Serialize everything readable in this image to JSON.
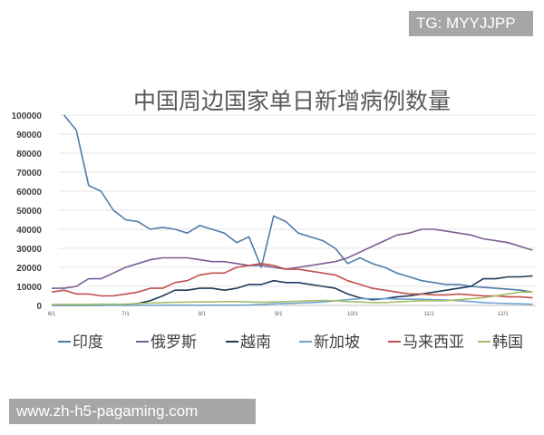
{
  "watermarks": {
    "top_right": "TG: MYYJJPP",
    "bottom_left": "www.zh-h5-pagaming.com"
  },
  "chart_data": {
    "type": "line",
    "title": "中国周边国家单日新增病例数量",
    "xlabel": "",
    "ylabel": "",
    "ylim": [
      0,
      100000
    ],
    "yticks": [
      "0",
      "10000",
      "20000",
      "30000",
      "40000",
      "50000",
      "60000",
      "70000",
      "80000",
      "90000",
      "100000"
    ],
    "xticks": [
      "6/1",
      "7/1",
      "8/1",
      "9/1",
      "10/1",
      "11/1",
      "12/1"
    ],
    "grid": true,
    "legend": "bottom",
    "x": [
      "6/1",
      "6/6",
      "6/11",
      "6/16",
      "6/21",
      "6/26",
      "7/1",
      "7/6",
      "7/11",
      "7/16",
      "7/21",
      "7/26",
      "7/31",
      "8/5",
      "8/10",
      "8/15",
      "8/20",
      "8/25",
      "8/30",
      "9/4",
      "9/9",
      "9/14",
      "9/19",
      "9/24",
      "9/29",
      "10/4",
      "10/9",
      "10/14",
      "10/19",
      "10/24",
      "10/29",
      "11/3",
      "11/8",
      "11/13",
      "11/18",
      "11/23",
      "11/28",
      "12/3",
      "12/8",
      "12/13"
    ],
    "series": [
      {
        "name": "印度",
        "color": "#4e7bab",
        "values": [
          null,
          100000,
          92000,
          63000,
          60000,
          50000,
          45000,
          44000,
          40000,
          41000,
          40000,
          38000,
          42000,
          40000,
          38000,
          33000,
          36000,
          20000,
          47000,
          44000,
          38000,
          36000,
          34000,
          30000,
          22000,
          25000,
          22000,
          20000,
          17000,
          15000,
          13000,
          12000,
          11000,
          11000,
          10000,
          9500,
          9000,
          8500,
          8000,
          7000
        ]
      },
      {
        "name": "俄罗斯",
        "color": "#7a5e95",
        "values": [
          9000,
          9000,
          10000,
          14000,
          14000,
          17000,
          20000,
          22000,
          24000,
          25000,
          25000,
          25000,
          24000,
          23000,
          23000,
          22000,
          21000,
          21000,
          20000,
          19000,
          20000,
          21000,
          22000,
          23000,
          25000,
          28000,
          31000,
          34000,
          37000,
          38000,
          40000,
          40000,
          39000,
          38000,
          37000,
          35000,
          34000,
          33000,
          31000,
          29000
        ]
      },
      {
        "name": "越南",
        "color": "#1f3b5c",
        "values": [
          0,
          0,
          0,
          0,
          0,
          200,
          500,
          1000,
          2500,
          5000,
          8000,
          8000,
          9000,
          9000,
          8000,
          9000,
          11000,
          11000,
          13000,
          12000,
          12000,
          11000,
          10000,
          9000,
          6000,
          4000,
          3000,
          3500,
          4500,
          5000,
          6000,
          7000,
          8000,
          9000,
          10000,
          14000,
          14000,
          15000,
          15000,
          15500
        ]
      },
      {
        "name": "新加坡",
        "color": "#6fa3cf",
        "values": [
          0,
          0,
          0,
          0,
          0,
          0,
          0,
          0,
          0,
          100,
          100,
          100,
          100,
          100,
          100,
          100,
          200,
          500,
          800,
          1000,
          1200,
          1500,
          1800,
          2500,
          3000,
          3500,
          3500,
          3500,
          3400,
          3300,
          3200,
          3000,
          2800,
          2500,
          2000,
          1500,
          1200,
          1000,
          800,
          600
        ]
      },
      {
        "name": "马来西亚",
        "color": "#c0504d",
        "values": [
          7000,
          8000,
          6000,
          6000,
          5000,
          5000,
          6000,
          7000,
          9000,
          9000,
          12000,
          13000,
          16000,
          17000,
          17000,
          20000,
          21000,
          22000,
          21000,
          19000,
          19000,
          18000,
          17000,
          16000,
          13000,
          11000,
          9000,
          8000,
          7000,
          6000,
          6000,
          5500,
          5500,
          6000,
          5500,
          5000,
          5000,
          4500,
          4500,
          4000
        ]
      },
      {
        "name": "韩国",
        "color": "#a5bd6a",
        "values": [
          500,
          500,
          500,
          500,
          600,
          600,
          700,
          1000,
          1200,
          1500,
          1600,
          1700,
          1800,
          1800,
          2000,
          2000,
          1800,
          1700,
          1800,
          2000,
          2200,
          2500,
          2600,
          2500,
          2000,
          1800,
          1500,
          1500,
          1800,
          2200,
          2500,
          2500,
          2500,
          3000,
          3500,
          4000,
          5000,
          6000,
          7000,
          7000
        ]
      }
    ]
  }
}
